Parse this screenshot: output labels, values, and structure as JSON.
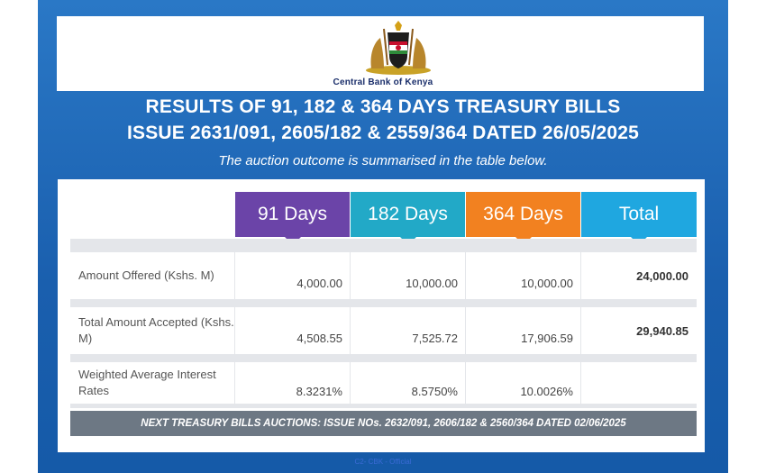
{
  "header": {
    "bank_name": "Central Bank of Kenya",
    "title_line1": "RESULTS OF 91, 182 & 364 DAYS TREASURY BILLS",
    "title_line2": "ISSUE 2631/091, 2605/182 & 2559/364 DATED 26/05/2025",
    "subtitle": "The auction outcome is summarised in the table below."
  },
  "table": {
    "columns": [
      "91 Days",
      "182 Days",
      "364 Days",
      "Total"
    ],
    "column_colors": [
      "#6b44a8",
      "#22a9c7",
      "#f28120",
      "#1fa7e0"
    ],
    "rows": [
      {
        "label": "Amount Offered (Kshs. M)",
        "values": [
          "4,000.00",
          "10,000.00",
          "10,000.00",
          "24,000.00"
        ]
      },
      {
        "label": "Total Amount Accepted (Kshs. M)",
        "values": [
          "4,508.55",
          "7,525.72",
          "17,906.59",
          "29,940.85"
        ]
      },
      {
        "label": "Weighted Average Interest Rates",
        "values": [
          "8.3231%",
          "8.5750%",
          "10.0026%",
          ""
        ]
      }
    ]
  },
  "next_auction": "NEXT TREASURY BILLS AUCTIONS: ISSUE NOs. 2632/091, 2606/182 & 2560/364 DATED 02/06/2025",
  "footer": "C2- CBK - Official"
}
